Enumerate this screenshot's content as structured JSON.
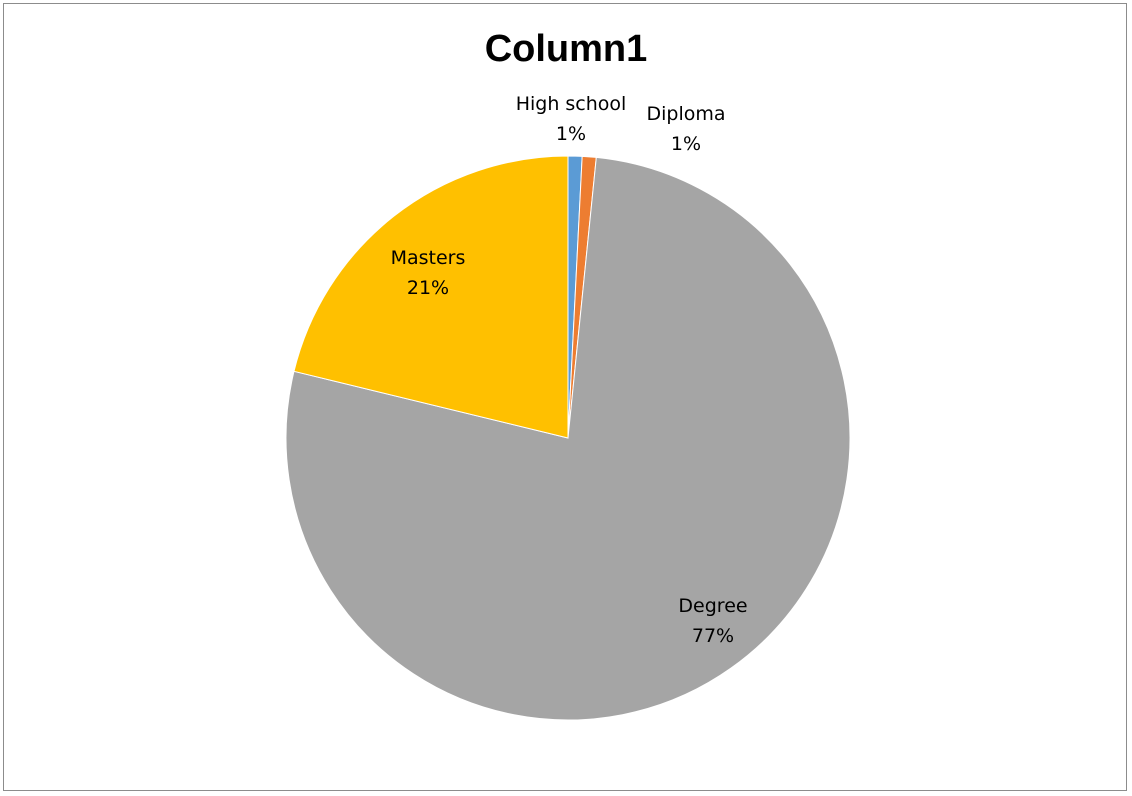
{
  "chart_data": {
    "type": "pie",
    "title": "Column1",
    "categories": [
      "High school",
      "Diploma",
      "Degree",
      "Masters"
    ],
    "values": [
      0.8,
      0.8,
      77.2,
      21.2
    ],
    "labels": [
      "1%",
      "1%",
      "77%",
      "21%"
    ],
    "colors": [
      "#5b9bd5",
      "#ed7d31",
      "#a5a5a5",
      "#ffc000"
    ],
    "legend": "none",
    "label_style": "category-and-percent"
  }
}
